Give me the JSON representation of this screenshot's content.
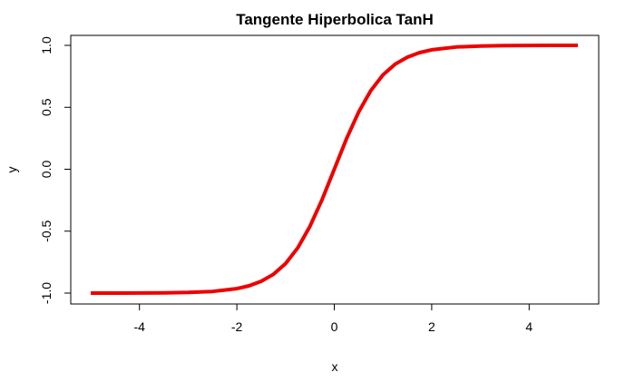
{
  "chart_data": {
    "type": "line",
    "title": "Tangente Hiperbolica TanH",
    "xlabel": "x",
    "ylabel": "y",
    "xlim": [
      -5,
      5
    ],
    "ylim": [
      -1,
      1
    ],
    "x_ticks": [
      -4,
      -2,
      0,
      2,
      4
    ],
    "y_ticks": [
      -1.0,
      -0.5,
      0.0,
      0.5,
      1.0
    ],
    "x_tick_labels": [
      "-4",
      "-2",
      "0",
      "2",
      "4"
    ],
    "y_tick_labels": [
      "-1.0",
      "-0.5",
      "0.0",
      "0.5",
      "1.0"
    ],
    "grid": false,
    "series": [
      {
        "color": "#ee0000",
        "x": [
          -5.0,
          -4.5,
          -4.0,
          -3.5,
          -3.0,
          -2.5,
          -2.0,
          -1.75,
          -1.5,
          -1.25,
          -1.0,
          -0.75,
          -0.5,
          -0.25,
          0.0,
          0.25,
          0.5,
          0.75,
          1.0,
          1.25,
          1.5,
          1.75,
          2.0,
          2.5,
          3.0,
          3.5,
          4.0,
          4.5,
          5.0
        ],
        "y": [
          -0.9999,
          -0.9998,
          -0.9993,
          -0.9982,
          -0.9951,
          -0.9866,
          -0.964,
          -0.9414,
          -0.9051,
          -0.8483,
          -0.7616,
          -0.6351,
          -0.4621,
          -0.2449,
          0.0,
          0.2449,
          0.4621,
          0.6351,
          0.7616,
          0.8483,
          0.9051,
          0.9414,
          0.964,
          0.9866,
          0.9951,
          0.9982,
          0.9993,
          0.9998,
          0.9999
        ]
      }
    ]
  }
}
